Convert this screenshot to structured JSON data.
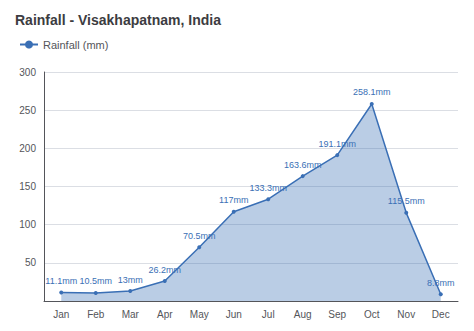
{
  "chart_data": {
    "type": "area",
    "title": "Rainfall - Visakhapatnam, India",
    "categories": [
      "Jan",
      "Feb",
      "Mar",
      "Apr",
      "May",
      "Jun",
      "Jul",
      "Aug",
      "Sep",
      "Oct",
      "Nov",
      "Dec"
    ],
    "series": [
      {
        "name": "Rainfall (mm)",
        "color": "#3a6fb5",
        "values": [
          11.1,
          10.5,
          13.0,
          26.2,
          70.5,
          117.0,
          133.3,
          163.6,
          191.1,
          258.1,
          115.5,
          8.8
        ],
        "value_labels": [
          "11.1mm",
          "10.5mm",
          "13mm",
          "26.2mm",
          "70.5mm",
          "117mm",
          "133.3mm",
          "163.6mm",
          "191.1mm",
          "258.1mm",
          "115.5mm",
          "8.8mm"
        ]
      }
    ],
    "ylim": [
      0,
      300
    ],
    "yticks": [
      50,
      100,
      150,
      200,
      250,
      300
    ],
    "grid": true,
    "legend": "top-left",
    "data_labels": true,
    "marker": "circle"
  }
}
